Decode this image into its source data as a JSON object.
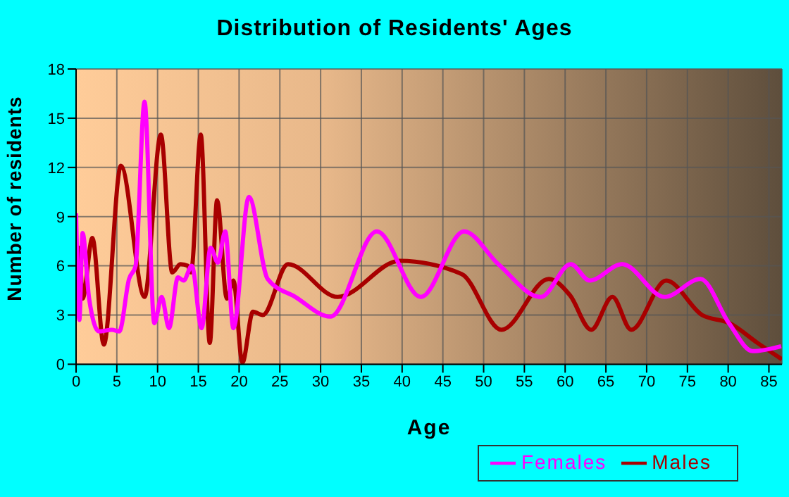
{
  "chart_data": {
    "type": "line",
    "title": "Distribution of Residents' Ages",
    "xlabel": "Age",
    "ylabel": "Number of residents",
    "xlim": [
      0,
      86.6
    ],
    "xticks": [
      0,
      5,
      10,
      15,
      20,
      25,
      30,
      35,
      40,
      45,
      50,
      55,
      60,
      65,
      70,
      75,
      80,
      85
    ],
    "ylim": [
      0,
      18
    ],
    "yticks": [
      0,
      3,
      6,
      9,
      12,
      15,
      18
    ],
    "grid": true,
    "legend": "bottom right",
    "marker": "none",
    "line_style": "solid",
    "series": [
      {
        "name": "Males",
        "color": "#a80000",
        "x": [
          0,
          0.4,
          0.8,
          2,
          3.4,
          5.5,
          8.4,
          10.4,
          11.8,
          12.8,
          13.7,
          14.1,
          15.3,
          16.4,
          17.3,
          18.5,
          19.3,
          20.4,
          21.7,
          22.9,
          26,
          32.1,
          39.7,
          47.3,
          52.2,
          58,
          60.6,
          63.2,
          65.8,
          68.1,
          72.4,
          76.8,
          80.2,
          83.6,
          86.6
        ],
        "values": [
          2.9,
          7.1,
          4,
          7.7,
          1.2,
          12.1,
          4.1,
          14,
          5.6,
          6.1,
          6,
          5.6,
          14,
          1.3,
          10,
          4,
          5.1,
          0.1,
          3.2,
          3,
          6.1,
          4.1,
          6.3,
          5.5,
          2.1,
          5.2,
          4.2,
          2.1,
          4.1,
          2.1,
          5.1,
          3,
          2.5,
          1.3,
          0.3
        ]
      },
      {
        "name": "Females",
        "color": "#ff00ff",
        "x": [
          0,
          0.4,
          0.8,
          1.6,
          2.8,
          4.4,
          5.3,
          6.5,
          7.3,
          8.4,
          9.6,
          10.5,
          11.4,
          12.5,
          13.2,
          14.2,
          15.4,
          16.5,
          17.4,
          18.3,
          19.3,
          21.2,
          23.5,
          26.9,
          31.2,
          36.9,
          42.3,
          47.6,
          51.8,
          57,
          60.7,
          63,
          67,
          72.2,
          76.6,
          80.1,
          83,
          86.5
        ],
        "values": [
          9.2,
          2.7,
          8,
          4,
          2,
          2.1,
          2,
          5.2,
          6,
          16,
          2.5,
          4.1,
          2.2,
          5.3,
          5.1,
          6,
          2.2,
          7.1,
          6.2,
          8.1,
          2.2,
          10.2,
          5.2,
          4.1,
          2.9,
          8.1,
          4.1,
          8.1,
          6.1,
          4.1,
          6.1,
          5.1,
          6.1,
          4.1,
          5.2,
          2.5,
          0.8,
          1.1
        ]
      }
    ]
  }
}
